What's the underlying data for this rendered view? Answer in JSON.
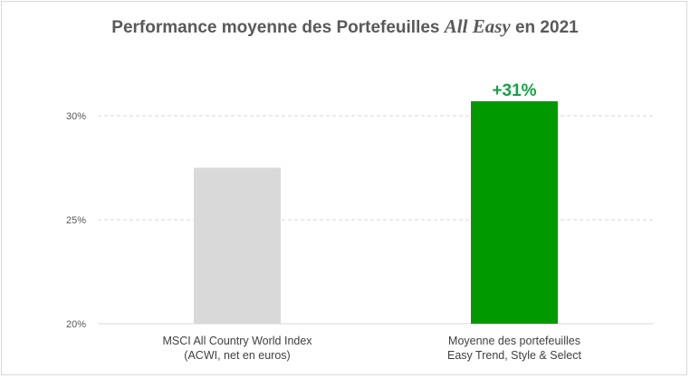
{
  "chart_data": {
    "type": "bar",
    "title_parts": {
      "before": "Performance moyenne des Portefeuilles ",
      "emphasis": "All Easy",
      "after": " en 2021"
    },
    "categories": [
      [
        "MSCI All Country World Index",
        "(ACWI, net en euros)"
      ],
      [
        "Moyenne des portefeuilles",
        "Easy Trend, Style & Select"
      ]
    ],
    "values": [
      27.5,
      30.7
    ],
    "bar_colors": [
      "#d9d9d9",
      "#009900"
    ],
    "data_labels": [
      null,
      "+31%"
    ],
    "data_label_color": "#1aa04a",
    "yticks": [
      20,
      25,
      30
    ],
    "ytick_labels": [
      "20%",
      "25%",
      "30%"
    ],
    "ylim": [
      20,
      31
    ],
    "grid": true,
    "xlabel": "",
    "ylabel": ""
  }
}
